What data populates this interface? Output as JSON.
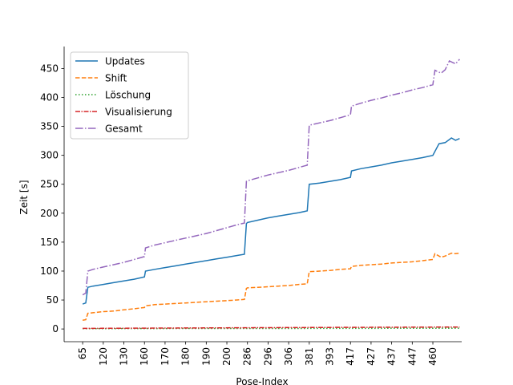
{
  "chart_data": {
    "type": "line",
    "title": "",
    "xlabel": "Pose-Index",
    "ylabel": "Zeit [s]",
    "x_tick_labels": [
      "65",
      "120",
      "130",
      "160",
      "170",
      "180",
      "190",
      "200",
      "286",
      "296",
      "306",
      "381",
      "393",
      "417",
      "427",
      "437",
      "447",
      "460"
    ],
    "y_ticks": [
      0,
      50,
      100,
      150,
      200,
      250,
      300,
      350,
      400,
      450
    ],
    "ylim": [
      -22,
      488
    ],
    "x_index_range": [
      -0.9,
      18.4
    ],
    "legend_position": "upper-left",
    "spines": "left-bottom",
    "series": [
      {
        "name": "Updates",
        "color": "#1f77b4",
        "dash": "solid",
        "points": [
          [
            0,
            43
          ],
          [
            0.15,
            45
          ],
          [
            0.25,
            72
          ],
          [
            0.5,
            74
          ],
          [
            1,
            77
          ],
          [
            1.5,
            80
          ],
          [
            2,
            83
          ],
          [
            2.5,
            86
          ],
          [
            3,
            90
          ],
          [
            3.05,
            100
          ],
          [
            3.5,
            103
          ],
          [
            4,
            106
          ],
          [
            4.5,
            109
          ],
          [
            5,
            112
          ],
          [
            5.5,
            115
          ],
          [
            6,
            118
          ],
          [
            6.5,
            121
          ],
          [
            7,
            124
          ],
          [
            7.5,
            127
          ],
          [
            7.85,
            129
          ],
          [
            7.95,
            182
          ],
          [
            8,
            184
          ],
          [
            8.5,
            188
          ],
          [
            9,
            192
          ],
          [
            9.5,
            195
          ],
          [
            10,
            198
          ],
          [
            10.5,
            201
          ],
          [
            10.9,
            204
          ],
          [
            11,
            250
          ],
          [
            11.5,
            252
          ],
          [
            12,
            255
          ],
          [
            12.5,
            258
          ],
          [
            13,
            262
          ],
          [
            13.05,
            273
          ],
          [
            13.5,
            277
          ],
          [
            14,
            280
          ],
          [
            14.5,
            283
          ],
          [
            15,
            287
          ],
          [
            15.5,
            290
          ],
          [
            16,
            293
          ],
          [
            16.5,
            296
          ],
          [
            17,
            300
          ],
          [
            17.3,
            320
          ],
          [
            17.6,
            322
          ],
          [
            17.9,
            330
          ],
          [
            18.1,
            326
          ],
          [
            18.3,
            329
          ]
        ]
      },
      {
        "name": "Shift",
        "color": "#ff7f0e",
        "dash": "dashed",
        "points": [
          [
            0,
            15
          ],
          [
            0.15,
            16
          ],
          [
            0.25,
            27
          ],
          [
            0.5,
            28
          ],
          [
            1,
            30
          ],
          [
            1.5,
            31
          ],
          [
            2,
            33
          ],
          [
            2.5,
            35
          ],
          [
            3,
            37
          ],
          [
            3.05,
            40
          ],
          [
            3.5,
            42
          ],
          [
            4,
            43
          ],
          [
            4.5,
            44
          ],
          [
            5,
            45
          ],
          [
            5.5,
            46
          ],
          [
            6,
            47
          ],
          [
            6.5,
            48
          ],
          [
            7,
            49
          ],
          [
            7.5,
            50
          ],
          [
            7.85,
            51
          ],
          [
            7.95,
            70
          ],
          [
            8,
            71
          ],
          [
            8.5,
            72
          ],
          [
            9,
            73
          ],
          [
            9.5,
            74
          ],
          [
            10,
            75
          ],
          [
            10.5,
            77
          ],
          [
            10.9,
            78
          ],
          [
            11,
            99
          ],
          [
            11.5,
            100
          ],
          [
            12,
            101
          ],
          [
            12.5,
            103
          ],
          [
            13,
            104
          ],
          [
            13.05,
            108
          ],
          [
            13.5,
            110
          ],
          [
            14,
            111
          ],
          [
            14.5,
            112
          ],
          [
            15,
            114
          ],
          [
            15.5,
            115
          ],
          [
            16,
            116
          ],
          [
            16.5,
            118
          ],
          [
            17,
            120
          ],
          [
            17.1,
            130
          ],
          [
            17.4,
            124
          ],
          [
            17.6,
            126
          ],
          [
            17.9,
            131
          ],
          [
            18.1,
            130
          ],
          [
            18.3,
            131
          ]
        ]
      },
      {
        "name": "Löschung",
        "color": "#2ca02c",
        "dash": "dotted",
        "points": [
          [
            0,
            0.5
          ],
          [
            3,
            0.7
          ],
          [
            6,
            0.8
          ],
          [
            9,
            0.9
          ],
          [
            12,
            1.0
          ],
          [
            15,
            1.1
          ],
          [
            18.3,
            1.2
          ]
        ]
      },
      {
        "name": "Visualisierung",
        "color": "#d62728",
        "dash": "dashdot",
        "points": [
          [
            0,
            1
          ],
          [
            3,
            1.4
          ],
          [
            6,
            1.8
          ],
          [
            9,
            2.2
          ],
          [
            12,
            2.6
          ],
          [
            15,
            3.0
          ],
          [
            18.3,
            3.3
          ]
        ]
      },
      {
        "name": "Gesamt",
        "color": "#9467bd",
        "dash": "dashdotted",
        "points": [
          [
            0,
            59
          ],
          [
            0.15,
            62
          ],
          [
            0.25,
            100
          ],
          [
            0.5,
            103
          ],
          [
            1,
            107
          ],
          [
            1.5,
            111
          ],
          [
            2,
            115
          ],
          [
            2.5,
            120
          ],
          [
            3,
            125
          ],
          [
            3.05,
            140
          ],
          [
            3.5,
            145
          ],
          [
            4,
            149
          ],
          [
            4.5,
            153
          ],
          [
            5,
            157
          ],
          [
            5.5,
            161
          ],
          [
            6,
            165
          ],
          [
            6.5,
            170
          ],
          [
            7,
            175
          ],
          [
            7.5,
            180
          ],
          [
            7.85,
            183
          ],
          [
            7.95,
            255
          ],
          [
            8,
            256
          ],
          [
            8.5,
            261
          ],
          [
            9,
            266
          ],
          [
            9.5,
            270
          ],
          [
            10,
            274
          ],
          [
            10.5,
            279
          ],
          [
            10.9,
            283
          ],
          [
            11,
            352
          ],
          [
            11.5,
            356
          ],
          [
            12,
            360
          ],
          [
            12.5,
            365
          ],
          [
            13,
            370
          ],
          [
            13.05,
            385
          ],
          [
            13.5,
            390
          ],
          [
            14,
            395
          ],
          [
            14.5,
            399
          ],
          [
            15,
            404
          ],
          [
            15.5,
            408
          ],
          [
            16,
            413
          ],
          [
            16.5,
            417
          ],
          [
            17,
            422
          ],
          [
            17.1,
            447
          ],
          [
            17.4,
            442
          ],
          [
            17.6,
            448
          ],
          [
            17.8,
            463
          ],
          [
            18.1,
            458
          ],
          [
            18.3,
            466
          ]
        ]
      }
    ]
  }
}
